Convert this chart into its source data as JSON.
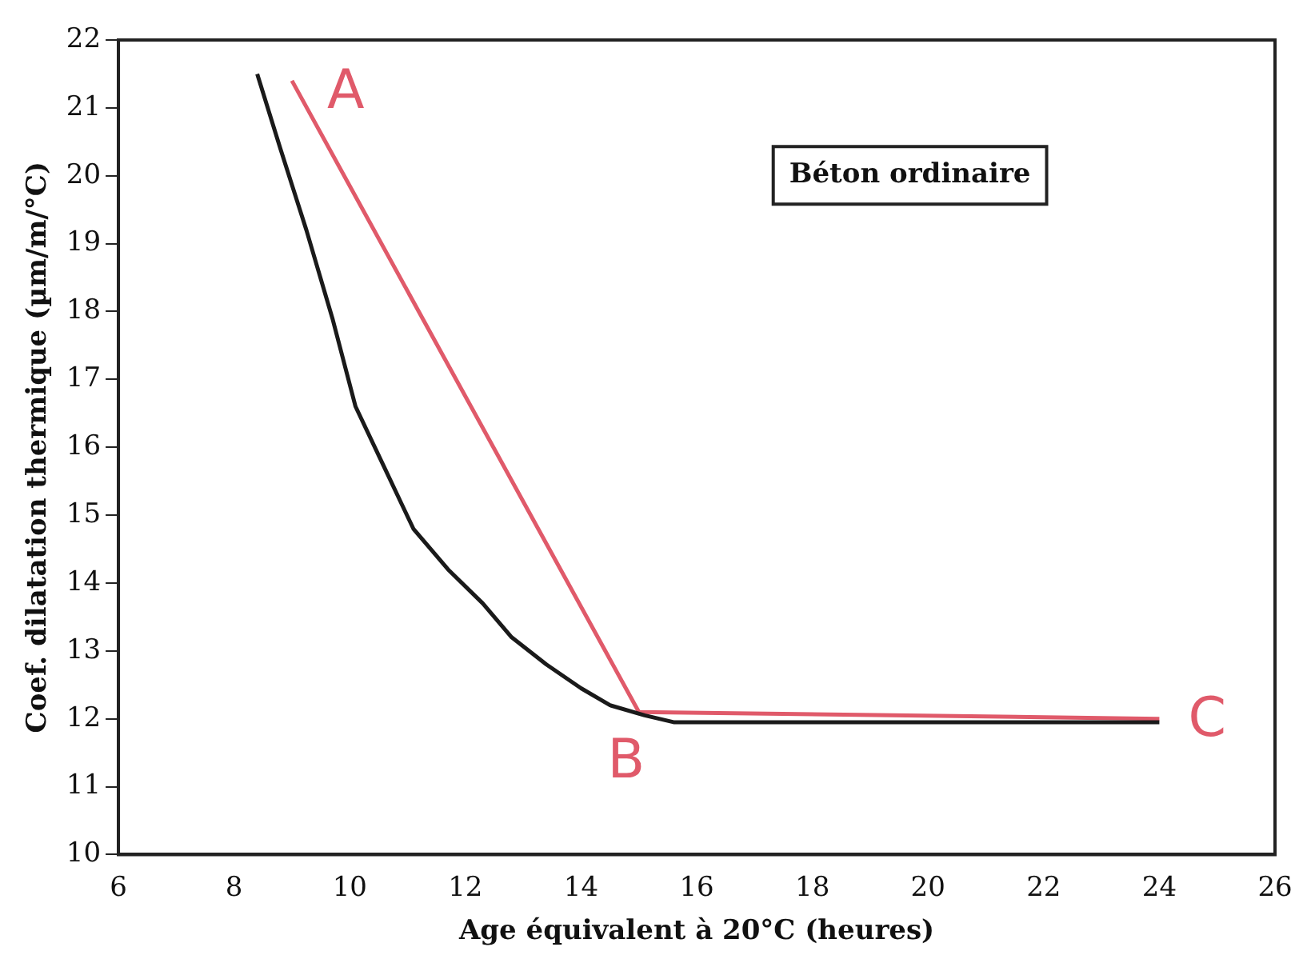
{
  "chart_data": {
    "type": "line",
    "xlabel": "Age équivalent à 20°C (heures)",
    "ylabel": "Coef. dilatation thermique (µm/m/°C)",
    "xlim": [
      6,
      26
    ],
    "xticks": [
      6,
      8,
      10,
      12,
      14,
      16,
      18,
      20,
      22,
      24,
      26
    ],
    "ylim": [
      10,
      22
    ],
    "yticks": [
      10,
      11,
      12,
      13,
      14,
      15,
      16,
      17,
      18,
      19,
      20,
      21,
      22
    ],
    "grid": false,
    "legend": false,
    "marker": "none",
    "line_style": "solid",
    "series": [
      {
        "color": "#1a1a1a",
        "x": [
          8.4,
          8.8,
          9.25,
          9.7,
          10.1,
          10.6,
          11.1,
          11.7,
          12.3,
          12.8,
          13.4,
          14.0,
          14.5,
          15.1,
          15.6,
          16.0,
          18,
          20,
          22,
          24
        ],
        "values": [
          21.5,
          20.4,
          19.2,
          17.9,
          16.6,
          15.7,
          14.8,
          14.2,
          13.7,
          13.2,
          12.8,
          12.45,
          12.2,
          12.05,
          11.95,
          11.95,
          11.95,
          11.95,
          11.95,
          11.95
        ]
      },
      {
        "color": "#e05a6a",
        "x": [
          9.0,
          15.0,
          24.0
        ],
        "values": [
          21.4,
          12.1,
          12.0
        ]
      }
    ],
    "annotations": [
      "Béton ordinaire",
      {
        "text": "A",
        "x": 9.0,
        "y": 21.4
      },
      {
        "text": "B",
        "x": 15.0,
        "y": 12.1
      },
      {
        "text": "C",
        "x": 24.0,
        "y": 12.0
      }
    ]
  }
}
